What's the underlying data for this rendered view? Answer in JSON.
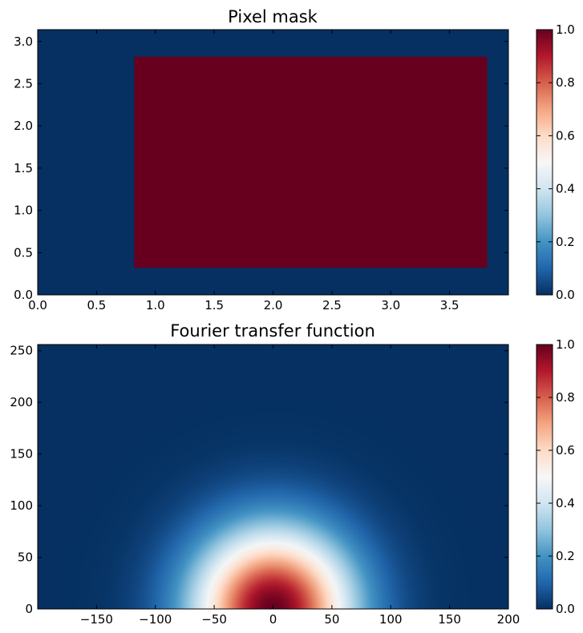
{
  "chart_data": [
    {
      "type": "heatmap",
      "title": "Pixel mask",
      "xlabel": "",
      "ylabel": "",
      "xlim": [
        0.0,
        4.0
      ],
      "ylim": [
        0.0,
        3.14
      ],
      "xticks": [
        "0.0",
        "0.5",
        "1.0",
        "1.5",
        "2.0",
        "2.5",
        "3.0",
        "3.5"
      ],
      "yticks": [
        "0.0",
        "0.5",
        "1.0",
        "1.5",
        "2.0",
        "2.5",
        "3.0"
      ],
      "background_value": 0.0,
      "mask_value": 1.0,
      "mask_region": {
        "x": [
          0.82,
          3.82
        ],
        "y": [
          0.32,
          2.82
        ]
      },
      "colorbar": {
        "colormap": "RdBu_r",
        "range": [
          0.0,
          1.0
        ],
        "ticks": [
          "0.0",
          "0.2",
          "0.4",
          "0.6",
          "0.8",
          "1.0"
        ]
      }
    },
    {
      "type": "heatmap",
      "title": "Fourier transfer function",
      "xlabel": "",
      "ylabel": "",
      "xlim": [
        -200,
        200
      ],
      "ylim": [
        0,
        256
      ],
      "xticks": [
        "−150",
        "−100",
        "−50",
        "0",
        "50",
        "100",
        "150",
        "200"
      ],
      "yticks": [
        "0",
        "50",
        "100",
        "150",
        "200",
        "250"
      ],
      "function": "gaussian",
      "peak_value": 1.0,
      "peak_location": [
        0,
        0
      ],
      "half_max_radius": 55,
      "colorbar": {
        "colormap": "RdBu_r",
        "range": [
          0.0,
          1.0
        ],
        "ticks": [
          "0.0",
          "0.2",
          "0.4",
          "0.6",
          "0.8",
          "1.0"
        ]
      }
    }
  ],
  "colormap_stops": [
    "#053061",
    "#2166ac",
    "#4393c3",
    "#92c5de",
    "#d1e5f0",
    "#f7f7f7",
    "#fddbc7",
    "#f4a582",
    "#d6604d",
    "#b2182b",
    "#67001f"
  ]
}
